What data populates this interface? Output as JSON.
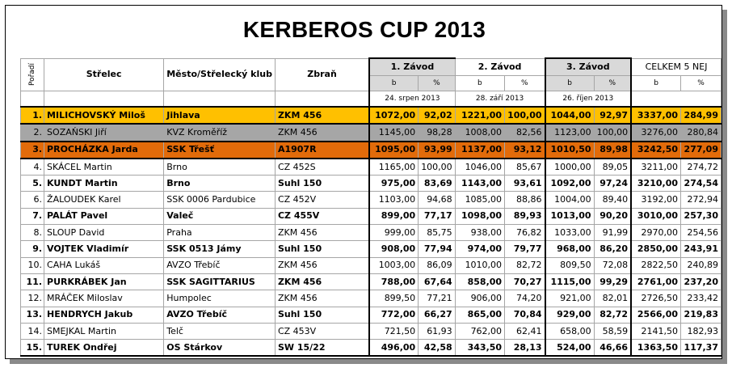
{
  "title": "KERBEROS CUP 2013",
  "headers": {
    "poradi": "Pořadí",
    "strelec": "Střelec",
    "mesto": "Město/Střelecký klub",
    "zbran": "Zbraň",
    "zavod1": "1. Závod",
    "zavod2": "2. Závod",
    "zavod3": "3. Závod",
    "celkem": "CELKEM 5 NEJ",
    "b": "b",
    "pct": "%"
  },
  "dates": [
    "24. srpen 2013",
    "28. září 2013",
    "26. říjen 2013"
  ],
  "rows": [
    {
      "rank": "1.",
      "name": "MILICHOVSKÝ Miloš",
      "club": "Jihlava",
      "weapon": "ZKM 456",
      "z1b": "1072,00",
      "z1p": "92,02",
      "z2b": "1221,00",
      "z2p": "100,00",
      "z3b": "1044,00",
      "z3p": "92,97",
      "tb": "3337,00",
      "tp": "284,99",
      "bold": true,
      "style": "r1"
    },
    {
      "rank": "2.",
      "name": "SOZAŃSKI Jiří",
      "club": "KVZ Kroměříž",
      "weapon": "ZKM 456",
      "z1b": "1145,00",
      "z1p": "98,28",
      "z2b": "1008,00",
      "z2p": "82,56",
      "z3b": "1123,00",
      "z3p": "100,00",
      "tb": "3276,00",
      "tp": "280,84",
      "bold": false,
      "style": "r2"
    },
    {
      "rank": "3.",
      "name": "PROCHÁZKA Jarda",
      "club": "SSK Třešť",
      "weapon": "A1907R",
      "z1b": "1095,00",
      "z1p": "93,99",
      "z2b": "1137,00",
      "z2p": "93,12",
      "z3b": "1010,50",
      "z3p": "89,98",
      "tb": "3242,50",
      "tp": "277,09",
      "bold": true,
      "style": "r3"
    },
    {
      "rank": "4.",
      "name": "SKÁCEL Martin",
      "club": "Brno",
      "weapon": "CZ 452S",
      "z1b": "1165,00",
      "z1p": "100,00",
      "z2b": "1046,00",
      "z2p": "85,67",
      "z3b": "1000,00",
      "z3p": "89,05",
      "tb": "3211,00",
      "tp": "274,72",
      "bold": false,
      "style": ""
    },
    {
      "rank": "5.",
      "name": "KUNDT Martin",
      "club": "Brno",
      "weapon": "Suhl 150",
      "z1b": "975,00",
      "z1p": "83,69",
      "z2b": "1143,00",
      "z2p": "93,61",
      "z3b": "1092,00",
      "z3p": "97,24",
      "tb": "3210,00",
      "tp": "274,54",
      "bold": true,
      "style": ""
    },
    {
      "rank": "6.",
      "name": "ŽALOUDEK Karel",
      "club": "SSK 0006 Pardubice",
      "weapon": "CZ 452V",
      "z1b": "1103,00",
      "z1p": "94,68",
      "z2b": "1085,00",
      "z2p": "88,86",
      "z3b": "1004,00",
      "z3p": "89,40",
      "tb": "3192,00",
      "tp": "272,94",
      "bold": false,
      "style": ""
    },
    {
      "rank": "7.",
      "name": "PALÁT Pavel",
      "club": "Valeč",
      "weapon": "CZ 455V",
      "z1b": "899,00",
      "z1p": "77,17",
      "z2b": "1098,00",
      "z2p": "89,93",
      "z3b": "1013,00",
      "z3p": "90,20",
      "tb": "3010,00",
      "tp": "257,30",
      "bold": true,
      "style": ""
    },
    {
      "rank": "8.",
      "name": "SLOUP David",
      "club": "Praha",
      "weapon": "ZKM 456",
      "z1b": "999,00",
      "z1p": "85,75",
      "z2b": "938,00",
      "z2p": "76,82",
      "z3b": "1033,00",
      "z3p": "91,99",
      "tb": "2970,00",
      "tp": "254,56",
      "bold": false,
      "style": ""
    },
    {
      "rank": "9.",
      "name": "VOJTEK Vladimír",
      "club": "SSK 0513 Jámy",
      "weapon": "Suhl 150",
      "z1b": "908,00",
      "z1p": "77,94",
      "z2b": "974,00",
      "z2p": "79,77",
      "z3b": "968,00",
      "z3p": "86,20",
      "tb": "2850,00",
      "tp": "243,91",
      "bold": true,
      "style": ""
    },
    {
      "rank": "10.",
      "name": "CAHA Lukáš",
      "club": "AVZO Třebíč",
      "weapon": "ZKM 456",
      "z1b": "1003,00",
      "z1p": "86,09",
      "z2b": "1010,00",
      "z2p": "82,72",
      "z3b": "809,50",
      "z3p": "72,08",
      "tb": "2822,50",
      "tp": "240,89",
      "bold": false,
      "style": ""
    },
    {
      "rank": "11.",
      "name": "PURKRÁBEK Jan",
      "club": "SSK SAGITTARIUS",
      "weapon": "ZKM 456",
      "z1b": "788,00",
      "z1p": "67,64",
      "z2b": "858,00",
      "z2p": "70,27",
      "z3b": "1115,00",
      "z3p": "99,29",
      "tb": "2761,00",
      "tp": "237,20",
      "bold": true,
      "style": ""
    },
    {
      "rank": "12.",
      "name": "MRÁČEK Miloslav",
      "club": "Humpolec",
      "weapon": "ZKM 456",
      "z1b": "899,50",
      "z1p": "77,21",
      "z2b": "906,00",
      "z2p": "74,20",
      "z3b": "921,00",
      "z3p": "82,01",
      "tb": "2726,50",
      "tp": "233,42",
      "bold": false,
      "style": ""
    },
    {
      "rank": "13.",
      "name": "HENDRYCH Jakub",
      "club": "AVZO Třebíč",
      "weapon": "Suhl 150",
      "z1b": "772,00",
      "z1p": "66,27",
      "z2b": "865,00",
      "z2p": "70,84",
      "z3b": "929,00",
      "z3p": "82,72",
      "tb": "2566,00",
      "tp": "219,83",
      "bold": true,
      "style": ""
    },
    {
      "rank": "14.",
      "name": "SMEJKAL Martin",
      "club": "Telč",
      "weapon": "CZ 453V",
      "z1b": "721,50",
      "z1p": "61,93",
      "z2b": "762,00",
      "z2p": "62,41",
      "z3b": "658,00",
      "z3p": "58,59",
      "tb": "2141,50",
      "tp": "182,93",
      "bold": false,
      "style": ""
    },
    {
      "rank": "15.",
      "name": "TUREK Ondřej",
      "club": "OS Stárkov",
      "weapon": "SW 15/22",
      "z1b": "496,00",
      "z1p": "42,58",
      "z2b": "343,50",
      "z2p": "28,13",
      "z3b": "524,00",
      "z3p": "46,66",
      "tb": "1363,50",
      "tp": "117,37",
      "bold": true,
      "style": ""
    }
  ]
}
